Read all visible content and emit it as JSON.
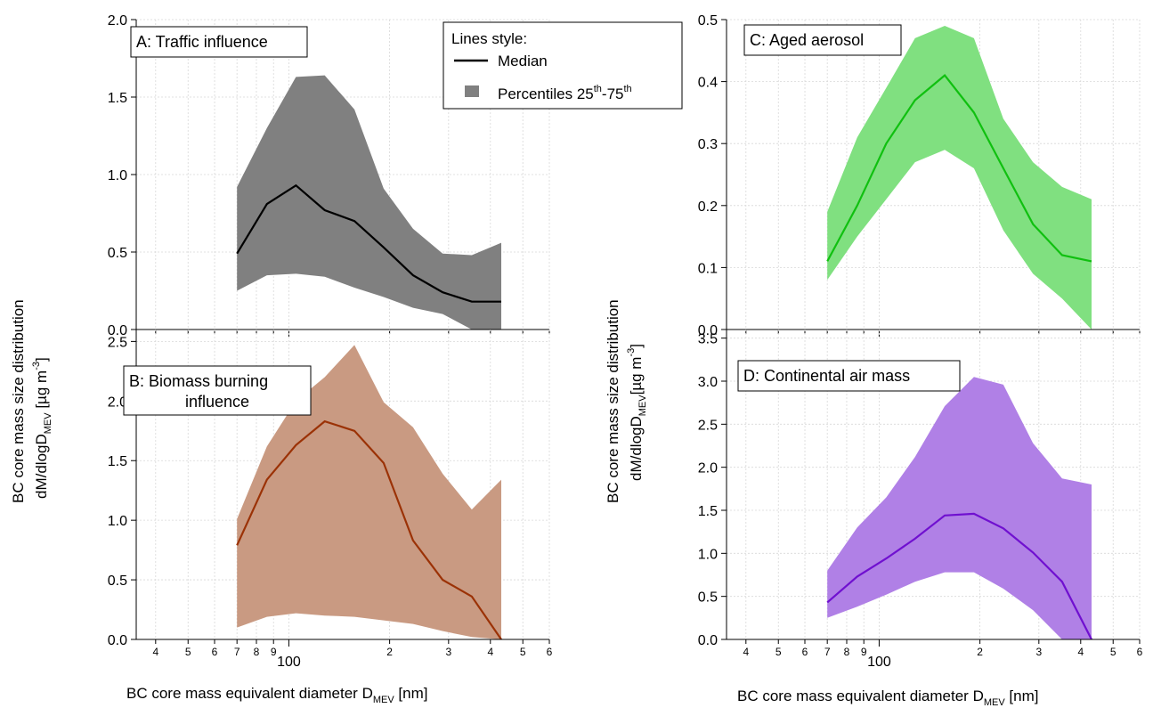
{
  "figure": {
    "left_ylabel": [
      "BC core mass size distribution",
      "dM/dlogD",
      "MEV",
      " [µg m",
      "-3",
      "]"
    ],
    "right_ylabel": [
      "BC core mass size distribution",
      "dM/dlogD",
      "MEV",
      "[µg m",
      "-3",
      "]"
    ],
    "xlabel_main": "BC core mass equivalent diameter D",
    "xlabel_sub": "MEV",
    "xlabel_unit": " [nm]",
    "legend": {
      "title": "Lines style:",
      "median": "Median",
      "percentiles_prefix": "Percentiles 25",
      "th": "th",
      "dash": "-75"
    }
  },
  "chart_data": [
    {
      "type": "area",
      "panel": "A",
      "title": "A: Traffic influence",
      "xscale": "log",
      "xlim": [
        35,
        600
      ],
      "ylim": [
        0,
        2.0
      ],
      "yticks": [
        0.0,
        0.5,
        1.0,
        1.5,
        2.0
      ],
      "color_fill": "#808080",
      "color_line": "#000000",
      "x": [
        70,
        86,
        105,
        128,
        157,
        192,
        235,
        288,
        352,
        431
      ],
      "median": [
        0.49,
        0.81,
        0.93,
        0.77,
        0.7,
        0.53,
        0.35,
        0.24,
        0.18,
        0.18
      ],
      "p25": [
        0.25,
        0.35,
        0.36,
        0.34,
        0.27,
        0.21,
        0.14,
        0.1,
        0.0,
        0.0
      ],
      "p75": [
        0.92,
        1.3,
        1.63,
        1.64,
        1.42,
        0.91,
        0.65,
        0.49,
        0.48,
        0.56
      ]
    },
    {
      "type": "area",
      "panel": "B",
      "title": [
        "B: Biomass burning",
        "influence"
      ],
      "xscale": "log",
      "xlim": [
        35,
        600
      ],
      "ylim": [
        0,
        2.6
      ],
      "yticks": [
        0.0,
        0.5,
        1.0,
        1.5,
        2.0,
        2.5
      ],
      "xticklabels": [
        "4",
        "5",
        "6",
        "7",
        "8",
        "9",
        "100",
        "2",
        "3",
        "4",
        "5",
        "6"
      ],
      "color_fill": "#c99a82",
      "color_line": "#9b3206",
      "x": [
        70,
        86,
        105,
        128,
        157,
        192,
        235,
        288,
        352,
        431
      ],
      "median": [
        0.79,
        1.34,
        1.63,
        1.83,
        1.75,
        1.48,
        0.83,
        0.5,
        0.36,
        0.0
      ],
      "p25": [
        0.1,
        0.19,
        0.22,
        0.2,
        0.19,
        0.16,
        0.13,
        0.07,
        0.02,
        0.0
      ],
      "p75": [
        1.01,
        1.62,
        2.0,
        2.2,
        2.47,
        1.99,
        1.78,
        1.39,
        1.09,
        1.34
      ]
    },
    {
      "type": "area",
      "panel": "C",
      "title": "C: Aged aerosol",
      "xscale": "log",
      "xlim": [
        35,
        600
      ],
      "ylim": [
        0,
        0.5
      ],
      "yticks": [
        0.0,
        0.1,
        0.2,
        0.3,
        0.4,
        0.5
      ],
      "color_fill": "#80e080",
      "color_line": "#10c010",
      "x": [
        70,
        86,
        105,
        128,
        157,
        192,
        235,
        288,
        352,
        431
      ],
      "median": [
        0.11,
        0.2,
        0.3,
        0.37,
        0.41,
        0.35,
        0.26,
        0.17,
        0.12,
        0.11
      ],
      "p25": [
        0.08,
        0.15,
        0.21,
        0.27,
        0.29,
        0.26,
        0.16,
        0.09,
        0.05,
        0.0
      ],
      "p75": [
        0.19,
        0.31,
        0.39,
        0.47,
        0.49,
        0.47,
        0.34,
        0.27,
        0.23,
        0.21
      ]
    },
    {
      "type": "area",
      "panel": "D",
      "title": "D: Continental air mass",
      "xscale": "log",
      "xlim": [
        35,
        600
      ],
      "ylim": [
        0,
        3.6
      ],
      "yticks": [
        0.0,
        0.5,
        1.0,
        1.5,
        2.0,
        2.5,
        3.0,
        3.5
      ],
      "xticklabels": [
        "4",
        "5",
        "6",
        "7",
        "8",
        "9",
        "100",
        "2",
        "3",
        "4",
        "5",
        "6"
      ],
      "color_fill": "#b080e6",
      "color_line": "#7010d0",
      "x": [
        70,
        86,
        105,
        128,
        157,
        192,
        235,
        288,
        352,
        431
      ],
      "median": [
        0.43,
        0.73,
        0.94,
        1.17,
        1.44,
        1.46,
        1.29,
        1.01,
        0.67,
        0.0
      ],
      "p25": [
        0.25,
        0.38,
        0.52,
        0.67,
        0.78,
        0.78,
        0.59,
        0.34,
        0.0,
        0.0
      ],
      "p75": [
        0.8,
        1.3,
        1.65,
        2.12,
        2.71,
        3.05,
        2.96,
        2.28,
        1.87,
        1.8
      ]
    }
  ]
}
